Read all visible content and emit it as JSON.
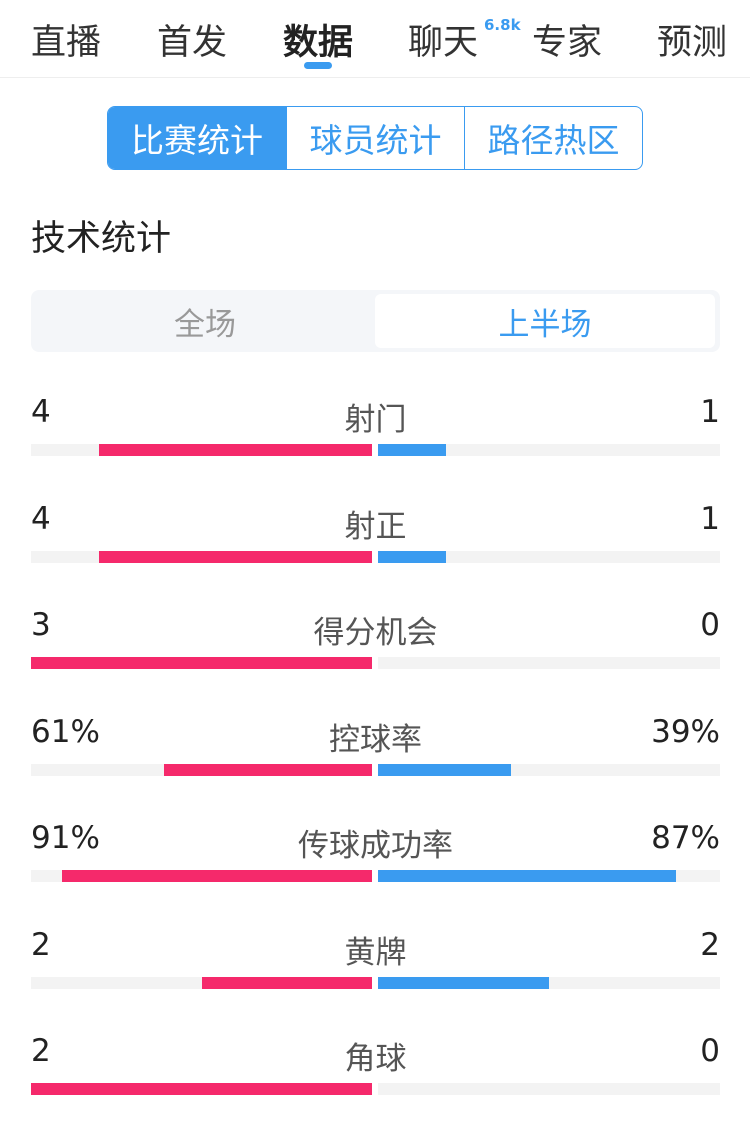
{
  "nav": {
    "tabs": [
      "直播",
      "首发",
      "数据",
      "聊天",
      "专家",
      "预测"
    ],
    "active": "数据",
    "chat_badge": "6.8k"
  },
  "segment": {
    "items": [
      "比赛统计",
      "球员统计",
      "路径热区"
    ],
    "active": "比赛统计"
  },
  "section_title": "技术统计",
  "period": {
    "items": [
      "全场",
      "上半场"
    ],
    "active": "上半场"
  },
  "colors": {
    "home": "#f5296b",
    "away": "#3a9bf0",
    "accent": "#3a9bf0"
  },
  "stats": [
    {
      "label": "射门",
      "home": "4",
      "away": "1",
      "home_fill": 0.8,
      "away_fill": 0.2
    },
    {
      "label": "射正",
      "home": "4",
      "away": "1",
      "home_fill": 0.8,
      "away_fill": 0.2
    },
    {
      "label": "得分机会",
      "home": "3",
      "away": "0",
      "home_fill": 1.0,
      "away_fill": 0
    },
    {
      "label": "控球率",
      "home": "61%",
      "away": "39%",
      "home_fill": 0.61,
      "away_fill": 0.39
    },
    {
      "label": "传球成功率",
      "home": "91%",
      "away": "87%",
      "home_fill": 0.91,
      "away_fill": 0.87
    },
    {
      "label": "黄牌",
      "home": "2",
      "away": "2",
      "home_fill": 0.5,
      "away_fill": 0.5
    },
    {
      "label": "角球",
      "home": "2",
      "away": "0",
      "home_fill": 1.0,
      "away_fill": 0
    }
  ]
}
